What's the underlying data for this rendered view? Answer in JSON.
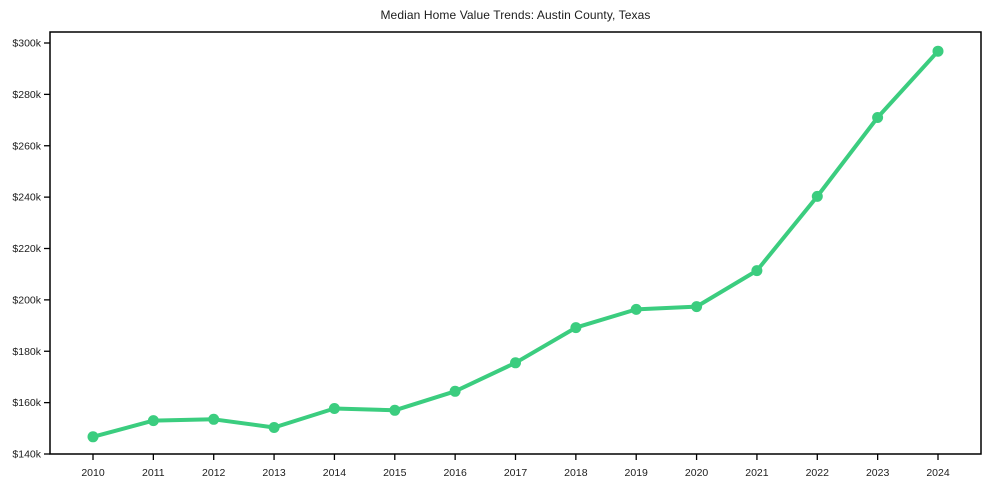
{
  "figure": {
    "background": "#ffffff",
    "spine_color": "#000000",
    "text_color": "#1c1c1c"
  },
  "chart_data": {
    "type": "line",
    "title": "Median Home Value Trends: Austin County, Texas",
    "x_labels": [
      "2010",
      "2011",
      "2012",
      "2013",
      "2014",
      "2015",
      "2016",
      "2017",
      "2018",
      "2019",
      "2020",
      "2021",
      "2022",
      "2023",
      "2024"
    ],
    "values": [
      146700,
      153000,
      153500,
      150300,
      157700,
      157000,
      164400,
      175500,
      189200,
      196300,
      197400,
      211400,
      240300,
      271000,
      296800
    ],
    "line_color": "#3bcd7f",
    "marker_color": "#3bcd7f",
    "ylim": [
      140000,
      300000
    ],
    "ytick_step": 20000,
    "ytick_labels": [
      "$140k",
      "$160k",
      "$180k",
      "$200k",
      "$220k",
      "$240k",
      "$260k",
      "$280k",
      "$300k"
    ],
    "grid": false,
    "legend_position": "none"
  }
}
